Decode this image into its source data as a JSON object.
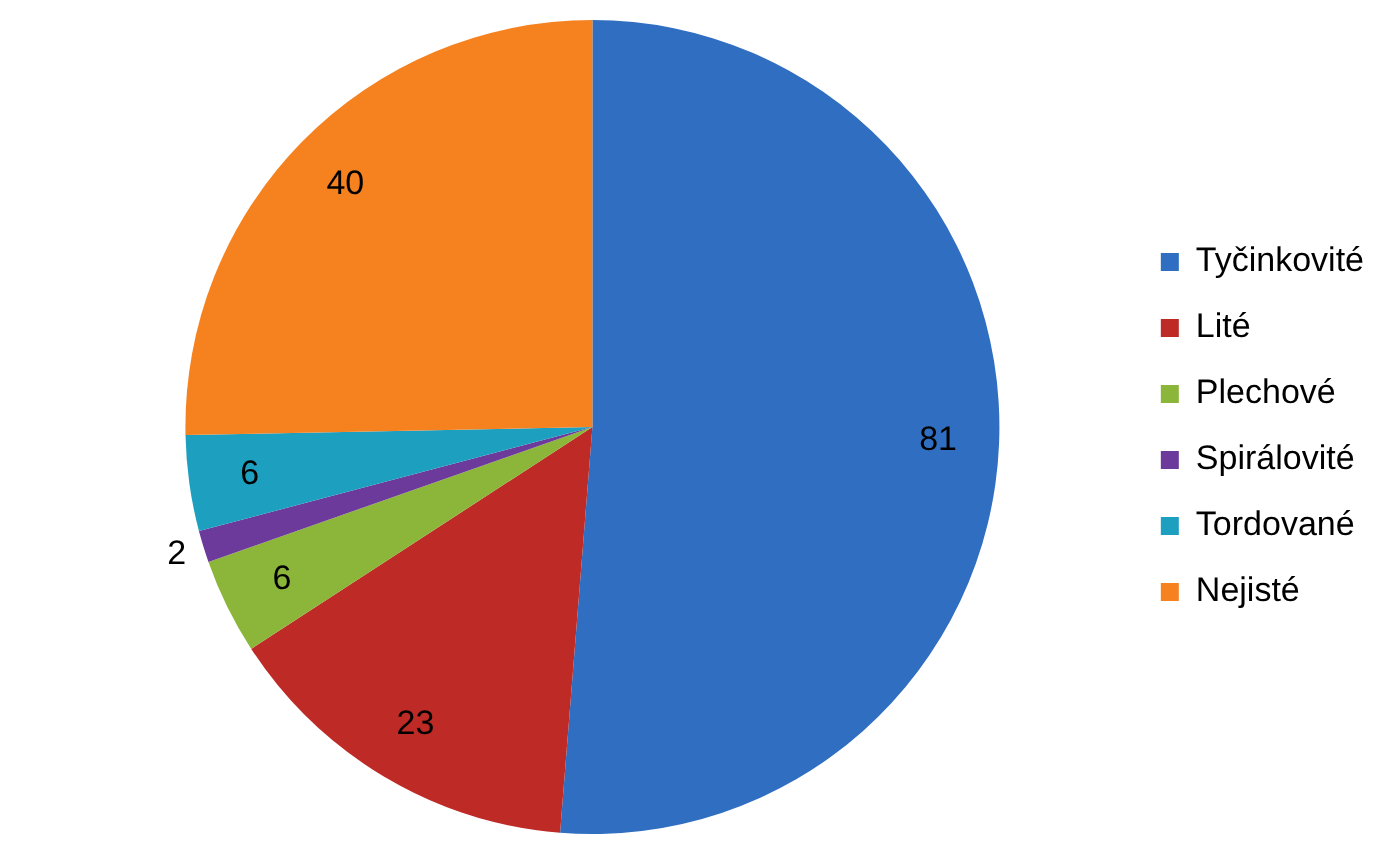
{
  "chart_data": {
    "type": "pie",
    "categories": [
      "Tyčinkovité",
      "Lité",
      "Plechové",
      "Spirálovité",
      "Tordované",
      "Nejisté"
    ],
    "values": [
      81,
      23,
      6,
      2,
      6,
      40
    ],
    "colors": [
      "#2f6ec0",
      "#be2a26",
      "#8cb63a",
      "#6b3a9a",
      "#1d9fc0",
      "#f5821f"
    ],
    "data_labels": true,
    "legend": "right"
  }
}
